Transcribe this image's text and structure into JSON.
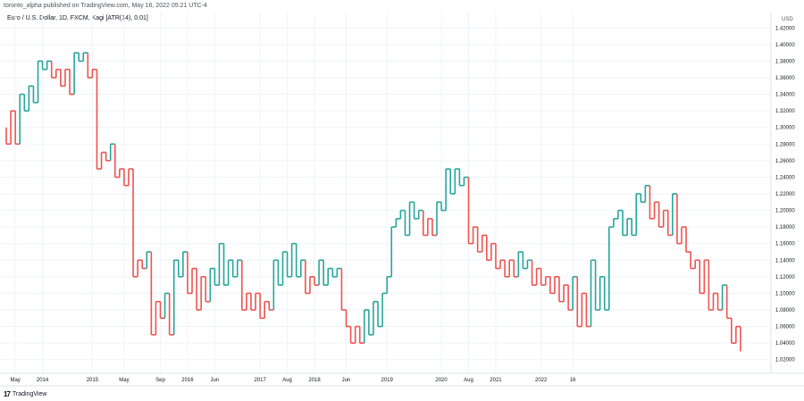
{
  "header": {
    "attribution": "toronto_alpha published on TradingView.com, May 16, 2022 05:21 UTC-4",
    "symbol": "Euro / U.S. Dollar, 1D, FXCM, Kagi [ATR(14), 0.01]"
  },
  "footer": {
    "logo": "17",
    "brand": "TradingView"
  },
  "colors": {
    "up": "#26a69a",
    "down": "#ef5350",
    "grid": "#f0f3fa",
    "axis": "#e0e3eb"
  },
  "chart_data": {
    "type": "line",
    "style": "kagi",
    "currency": "USD",
    "ylim": [
      1.01,
      1.43
    ],
    "y_ticks": [
      1.02,
      1.04,
      1.06,
      1.08,
      1.1,
      1.12,
      1.14,
      1.16,
      1.18,
      1.2,
      1.22,
      1.24,
      1.26,
      1.28,
      1.3,
      1.32,
      1.34,
      1.36,
      1.38,
      1.4,
      1.42
    ],
    "y_tick_labels": [
      "1.02000",
      "1.04000",
      "1.06000",
      "1.08000",
      "1.10000",
      "1.12000",
      "1.14000",
      "1.16000",
      "1.18000",
      "1.20000",
      "1.22000",
      "1.24000",
      "1.26000",
      "1.28000",
      "1.30000",
      "1.32000",
      "1.34000",
      "1.36000",
      "1.38000",
      "1.40000",
      "1.42000"
    ],
    "x_ticks": [
      "May",
      "2014",
      "2015",
      "May",
      "Sep",
      "2016",
      "Jun",
      "2017",
      "Aug",
      "2018",
      "Jun",
      "2019",
      "2020",
      "Aug",
      "2021",
      "2022",
      "16"
    ],
    "x_tick_index": [
      2,
      8,
      19,
      26,
      34,
      40,
      46,
      56,
      62,
      68,
      75,
      84,
      96,
      102,
      108,
      118,
      125
    ],
    "kagi_turns": [
      1.3,
      1.28,
      1.32,
      1.28,
      1.34,
      1.32,
      1.35,
      1.33,
      1.38,
      1.37,
      1.38,
      1.36,
      1.37,
      1.35,
      1.37,
      1.34,
      1.39,
      1.38,
      1.39,
      1.36,
      1.37,
      1.25,
      1.27,
      1.26,
      1.28,
      1.24,
      1.25,
      1.23,
      1.25,
      1.12,
      1.14,
      1.13,
      1.15,
      1.05,
      1.09,
      1.07,
      1.1,
      1.05,
      1.14,
      1.12,
      1.15,
      1.1,
      1.13,
      1.08,
      1.12,
      1.09,
      1.13,
      1.11,
      1.16,
      1.11,
      1.14,
      1.12,
      1.14,
      1.08,
      1.1,
      1.08,
      1.1,
      1.07,
      1.09,
      1.08,
      1.14,
      1.11,
      1.15,
      1.12,
      1.16,
      1.12,
      1.14,
      1.1,
      1.12,
      1.11,
      1.14,
      1.11,
      1.13,
      1.12,
      1.13,
      1.08,
      1.06,
      1.04,
      1.06,
      1.04,
      1.08,
      1.05,
      1.09,
      1.06,
      1.1,
      1.12,
      1.18,
      1.19,
      1.2,
      1.17,
      1.21,
      1.19,
      1.2,
      1.17,
      1.19,
      1.17,
      1.21,
      1.2,
      1.25,
      1.22,
      1.25,
      1.23,
      1.24,
      1.16,
      1.18,
      1.15,
      1.17,
      1.14,
      1.16,
      1.13,
      1.14,
      1.12,
      1.14,
      1.12,
      1.15,
      1.13,
      1.14,
      1.11,
      1.13,
      1.11,
      1.12,
      1.1,
      1.12,
      1.09,
      1.11,
      1.08,
      1.12,
      1.06,
      1.1,
      1.06,
      1.14,
      1.08,
      1.12,
      1.08,
      1.18,
      1.19,
      1.2,
      1.17,
      1.19,
      1.17,
      1.22,
      1.21,
      1.23,
      1.19,
      1.21,
      1.18,
      1.2,
      1.17,
      1.22,
      1.16,
      1.18,
      1.15,
      1.13,
      1.14,
      1.1,
      1.14,
      1.08,
      1.1,
      1.08,
      1.11,
      1.07,
      1.04,
      1.06,
      1.03
    ]
  }
}
